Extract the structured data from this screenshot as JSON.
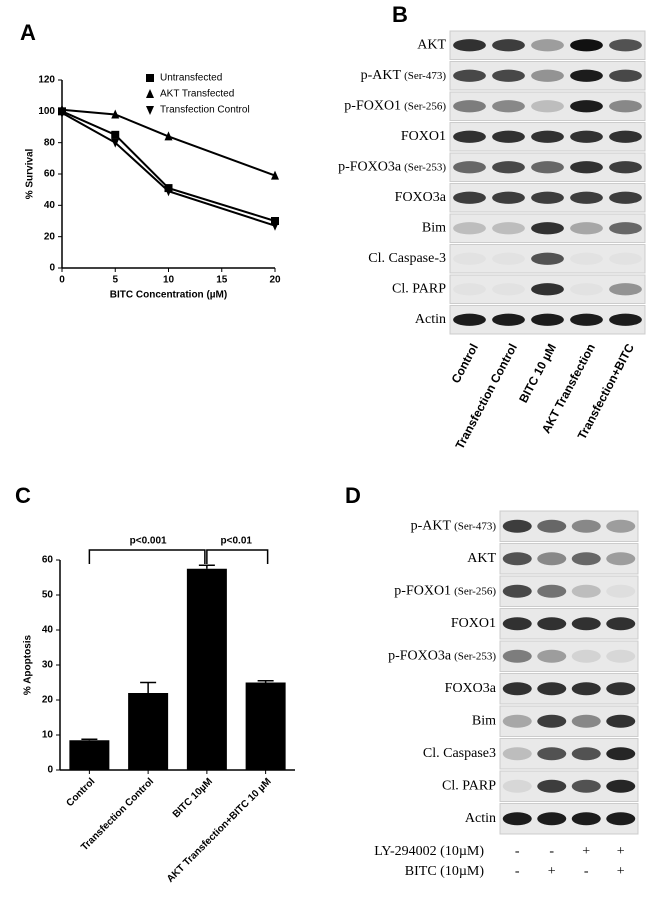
{
  "chart_data": [
    {
      "type": "line",
      "panel_label": "A",
      "xlabel": "BITC Concentration (µM)",
      "ylabel": "% Survival",
      "x": [
        0,
        5,
        10,
        20
      ],
      "xlim": [
        0,
        20
      ],
      "xticks": [
        0,
        5,
        10,
        15,
        20
      ],
      "ylim": [
        0,
        120
      ],
      "yticks": [
        0,
        20,
        40,
        60,
        80,
        100,
        120
      ],
      "legend": "upper right",
      "series": [
        {
          "name": "Untransfected",
          "color": "#000000",
          "marker": "square",
          "values": [
            100,
            85,
            51,
            30
          ]
        },
        {
          "name": "AKT Transfected",
          "color": "#000000",
          "marker": "triangle-up",
          "values": [
            101,
            98,
            84,
            59
          ]
        },
        {
          "name": "Transfection Control",
          "color": "#000000",
          "marker": "triangle-down",
          "values": [
            99,
            80,
            49,
            27
          ]
        }
      ]
    },
    {
      "type": "bar",
      "panel_label": "C",
      "ylabel": "% Apoptosis",
      "categories": [
        "Control",
        "Transfection Control",
        "BITC 10µM",
        "AKT Transfection+BITC 10 µM"
      ],
      "values": [
        8.5,
        22,
        57.5,
        25
      ],
      "errors": [
        0.3,
        3,
        1,
        0.5
      ],
      "color": "#000000",
      "ylim": [
        0,
        60
      ],
      "yticks": [
        0,
        10,
        20,
        30,
        40,
        50,
        60
      ],
      "annotations": [
        "p<0.001",
        "p<0.01"
      ]
    }
  ],
  "blot_b": {
    "panel_label": "B",
    "rows": [
      {
        "label": "AKT"
      },
      {
        "label": "p-AKT",
        "site": "(Ser-473)"
      },
      {
        "label": "p-FOXO1",
        "site": "(Ser-256)"
      },
      {
        "label": "FOXO1"
      },
      {
        "label": "p-FOXO3a",
        "site": "(Ser-253)"
      },
      {
        "label": "FOXO3a"
      },
      {
        "label": "Bim"
      },
      {
        "label": "Cl. Caspase-3"
      },
      {
        "label": "Cl. PARP"
      },
      {
        "label": "Actin"
      }
    ],
    "lanes": [
      "Control",
      "Transfection Control",
      "BITC 10 µM",
      "AKT Transfection",
      "Transfection+BITC"
    ]
  },
  "blot_d": {
    "panel_label": "D",
    "rows": [
      {
        "label": "p-AKT",
        "site": "(Ser-473)"
      },
      {
        "label": "AKT"
      },
      {
        "label": "p-FOXO1",
        "site": "(Ser-256)"
      },
      {
        "label": "FOXO1"
      },
      {
        "label": "p-FOXO3a",
        "site": "(Ser-253)"
      },
      {
        "label": "FOXO3a"
      },
      {
        "label": "Bim"
      },
      {
        "label": "Cl. Caspase3"
      },
      {
        "label": "Cl. PARP"
      },
      {
        "label": "Actin"
      }
    ],
    "treatments": [
      {
        "label": "LY-294002 (10µM)",
        "signs": [
          "-",
          "-",
          "+",
          "+"
        ]
      },
      {
        "label": "BITC (10µM)",
        "signs": [
          "-",
          "+",
          "-",
          "+"
        ]
      }
    ]
  }
}
